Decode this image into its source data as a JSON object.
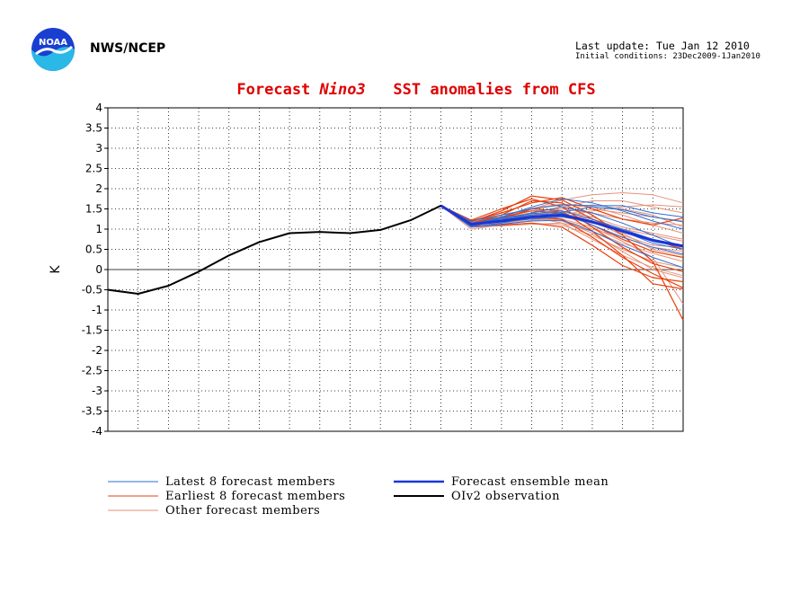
{
  "header": {
    "agency": "NWS/NCEP",
    "last_update": "Last update: Tue Jan 12 2010",
    "initial_conditions": "Initial conditions: 23Dec2009-1Jan2010",
    "logo_text": "NOAA"
  },
  "chart_data": {
    "type": "line",
    "title_parts": [
      "Forecast ",
      "Nino3",
      "   SST anomalies from CFS"
    ],
    "ylabel": "K",
    "xlabel": "",
    "ylim": [
      -4,
      4
    ],
    "yticks": [
      "4",
      "3.5",
      "3",
      "2.5",
      "2",
      "1.5",
      "1",
      "0.5",
      "0",
      "-0.5",
      "-1",
      "-1.5",
      "-2",
      "-2.5",
      "-3",
      "-3.5",
      "-4"
    ],
    "grid": true,
    "observation": {
      "name": "OIv2 observation",
      "color": "#000000",
      "x": [
        0,
        1,
        2,
        3,
        4,
        5,
        6,
        7,
        8,
        9,
        10,
        11
      ],
      "y": [
        -0.5,
        -0.6,
        -0.4,
        -0.05,
        0.35,
        0.68,
        0.9,
        0.93,
        0.9,
        0.98,
        1.22,
        1.58
      ]
    },
    "ensemble_mean": {
      "name": "Forecast ensemble mean",
      "color": "#1a35d6",
      "x": [
        11,
        12,
        13,
        14,
        15,
        16,
        17,
        18,
        19
      ],
      "y": [
        1.58,
        1.12,
        1.2,
        1.3,
        1.35,
        1.18,
        0.95,
        0.72,
        0.58
      ]
    },
    "latest_members": {
      "name": "Latest 8 forecast members",
      "color": "#2a6fd6",
      "x": [
        11,
        12,
        13,
        14,
        15,
        16,
        17,
        18,
        19
      ],
      "series": [
        [
          1.58,
          1.05,
          1.15,
          1.3,
          1.42,
          1.55,
          1.48,
          1.3,
          1.18
        ],
        [
          1.58,
          1.08,
          1.22,
          1.4,
          1.55,
          1.4,
          1.15,
          0.85,
          0.55
        ],
        [
          1.58,
          1.12,
          1.3,
          1.55,
          1.75,
          1.65,
          1.45,
          1.2,
          1.0
        ],
        [
          1.58,
          1.15,
          1.25,
          1.35,
          1.4,
          1.1,
          0.8,
          0.55,
          0.38
        ],
        [
          1.58,
          1.1,
          1.18,
          1.25,
          1.3,
          1.2,
          0.95,
          0.65,
          0.5
        ],
        [
          1.58,
          1.2,
          1.35,
          1.5,
          1.6,
          1.58,
          1.58,
          1.4,
          1.3
        ],
        [
          1.58,
          1.05,
          1.12,
          1.2,
          1.22,
          0.95,
          0.6,
          0.3,
          0.05
        ],
        [
          1.58,
          1.12,
          1.28,
          1.38,
          1.45,
          1.25,
          1.0,
          0.75,
          0.6
        ]
      ]
    },
    "earliest_members": {
      "name": "Earliest 8 forecast members",
      "color": "#e8400c",
      "x": [
        11,
        12,
        13,
        14,
        15,
        16,
        17,
        18,
        19
      ],
      "series": [
        [
          1.58,
          1.18,
          1.45,
          1.82,
          1.72,
          1.35,
          0.85,
          0.2,
          -1.25
        ],
        [
          1.58,
          1.1,
          1.25,
          1.5,
          1.45,
          0.95,
          0.35,
          -0.35,
          -0.48
        ],
        [
          1.58,
          1.15,
          1.35,
          1.7,
          1.65,
          1.25,
          0.95,
          0.75,
          0.5
        ],
        [
          1.58,
          1.2,
          1.4,
          1.65,
          1.78,
          1.5,
          1.25,
          1.1,
          1.28
        ],
        [
          1.58,
          1.12,
          1.18,
          1.3,
          1.25,
          0.8,
          0.3,
          -0.1,
          -0.45
        ],
        [
          1.58,
          1.08,
          1.1,
          1.15,
          1.05,
          0.6,
          0.1,
          -0.2,
          -0.3
        ],
        [
          1.58,
          1.22,
          1.5,
          1.75,
          1.55,
          1.05,
          0.55,
          0.15,
          -0.05
        ],
        [
          1.58,
          1.15,
          1.3,
          1.45,
          1.4,
          1.1,
          0.75,
          0.45,
          0.3
        ]
      ]
    },
    "other_members": {
      "name": "Other forecast members",
      "color": "#e6927a",
      "x": [
        11,
        12,
        13,
        14,
        15,
        16,
        17,
        18,
        19
      ],
      "series": [
        [
          1.58,
          1.1,
          1.3,
          1.5,
          1.72,
          1.85,
          1.9,
          1.85,
          1.65
        ],
        [
          1.58,
          1.05,
          1.15,
          1.2,
          1.3,
          1.45,
          1.55,
          1.6,
          1.55
        ],
        [
          1.58,
          1.15,
          1.25,
          1.4,
          1.55,
          1.7,
          1.7,
          1.55,
          1.4
        ],
        [
          1.58,
          1.1,
          1.2,
          1.3,
          1.25,
          1.05,
          0.7,
          0.3,
          -0.85
        ],
        [
          1.58,
          1.0,
          1.1,
          1.15,
          1.1,
          0.85,
          0.5,
          0.2,
          0.05
        ],
        [
          1.58,
          1.12,
          1.22,
          1.35,
          1.45,
          1.3,
          1.05,
          0.9,
          0.75
        ],
        [
          1.58,
          1.18,
          1.3,
          1.4,
          1.35,
          1.2,
          0.95,
          0.7,
          0.6
        ],
        [
          1.58,
          1.05,
          1.08,
          1.12,
          1.15,
          0.95,
          0.65,
          0.4,
          0.2
        ],
        [
          1.58,
          1.2,
          1.35,
          1.45,
          1.5,
          1.4,
          1.25,
          1.15,
          1.1
        ],
        [
          1.58,
          1.08,
          1.2,
          1.32,
          1.38,
          1.25,
          0.9,
          0.5,
          0.35
        ],
        [
          1.58,
          1.12,
          1.18,
          1.28,
          1.22,
          1.0,
          0.8,
          0.55,
          0.45
        ],
        [
          1.58,
          1.15,
          1.28,
          1.52,
          1.62,
          1.55,
          1.35,
          1.1,
          0.9
        ],
        [
          1.58,
          1.1,
          1.15,
          1.25,
          1.2,
          0.9,
          0.45,
          0.0,
          -0.2
        ],
        [
          1.58,
          1.2,
          1.3,
          1.35,
          1.3,
          1.15,
          1.0,
          0.85,
          0.7
        ],
        [
          1.58,
          1.05,
          1.12,
          1.22,
          1.35,
          1.5,
          1.4,
          1.3,
          1.2
        ],
        [
          1.58,
          1.1,
          1.22,
          1.3,
          1.4,
          1.2,
          0.85,
          0.6,
          0.55
        ],
        [
          1.58,
          1.12,
          1.2,
          1.35,
          1.5,
          1.6,
          1.5,
          1.35,
          1.05
        ],
        [
          1.58,
          1.15,
          1.25,
          1.3,
          1.15,
          0.75,
          0.35,
          0.05,
          -0.15
        ]
      ]
    },
    "legend": {
      "placement": "bottom",
      "items": [
        {
          "label": "Latest 8 forecast members",
          "color": "#2a6fd6",
          "width": 1
        },
        {
          "label": "Earliest 8 forecast members",
          "color": "#e8400c",
          "width": 1
        },
        {
          "label": "Other forecast members",
          "color": "#e6927a",
          "width": 1
        },
        {
          "label": "Forecast ensemble mean",
          "color": "#1a35d6",
          "width": 2.5
        },
        {
          "label": "OIv2 observation",
          "color": "#000000",
          "width": 2
        }
      ]
    }
  }
}
